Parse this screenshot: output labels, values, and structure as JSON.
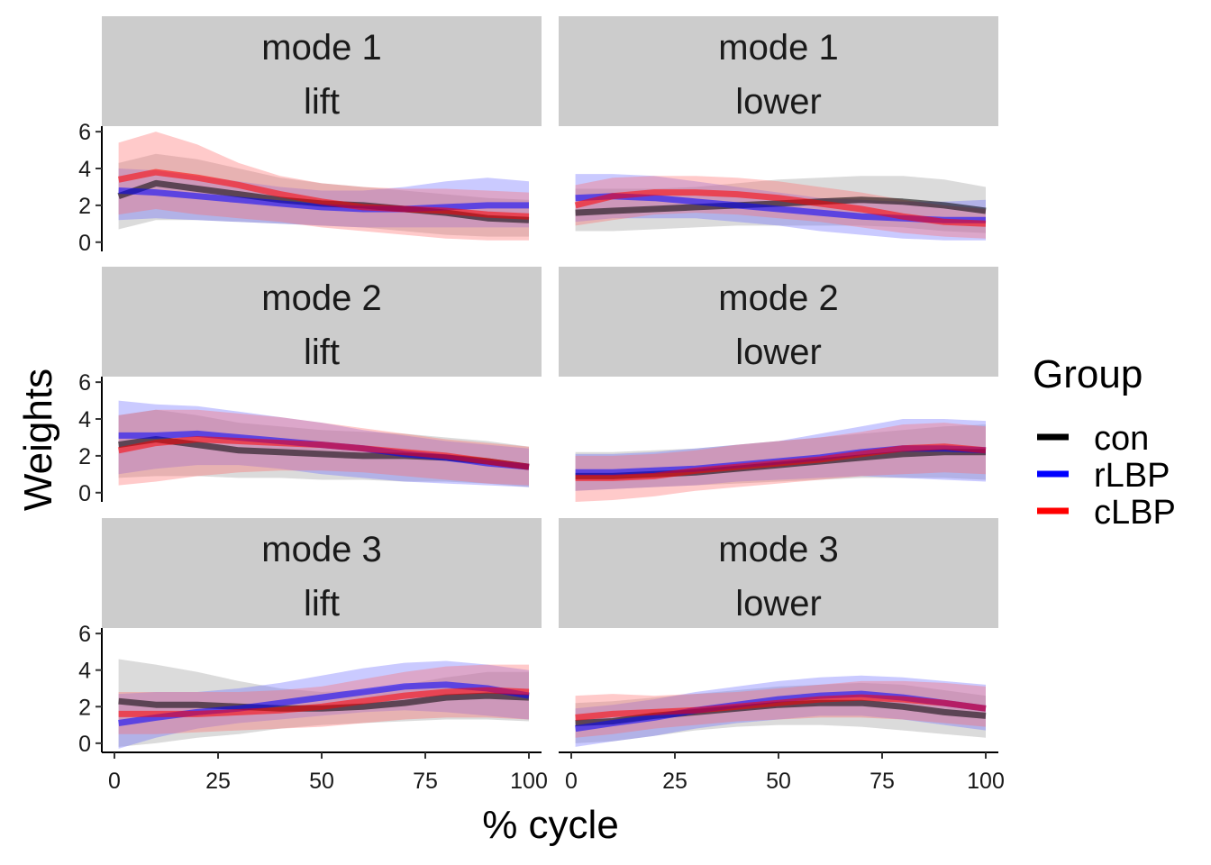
{
  "chart_data": {
    "type": "line",
    "xlabel": "% cycle",
    "ylabel": "Weights",
    "xlim": [
      0,
      100
    ],
    "ylim": [
      -0.5,
      6.3
    ],
    "x_ticks": [
      0,
      25,
      50,
      75,
      100
    ],
    "y_ticks": [
      0,
      2,
      4,
      6
    ],
    "grid": false,
    "legend": {
      "title": "Group",
      "position": "right",
      "entries": [
        {
          "name": "con",
          "color": "#000000"
        },
        {
          "name": "rLBP",
          "color": "#0000ff"
        },
        {
          "name": "cLBP",
          "color": "#ff0000"
        }
      ]
    },
    "x": [
      1,
      10,
      20,
      30,
      40,
      50,
      60,
      70,
      80,
      90,
      100
    ],
    "panels": [
      {
        "mode": "mode 1",
        "phase": "lift",
        "series": [
          {
            "name": "con",
            "values": [
              2.5,
              3.2,
              2.9,
              2.6,
              2.3,
              2.1,
              2.0,
              1.8,
              1.6,
              1.3,
              1.2
            ],
            "lower": [
              0.7,
              1.2,
              1.2,
              1.1,
              1.0,
              0.9,
              0.8,
              0.6,
              0.4,
              0.3,
              0.3
            ],
            "upper": [
              4.3,
              4.8,
              4.5,
              4.0,
              3.5,
              3.2,
              3.0,
              2.8,
              2.6,
              2.4,
              2.3
            ]
          },
          {
            "name": "rLBP",
            "values": [
              2.8,
              2.7,
              2.5,
              2.3,
              2.1,
              1.9,
              1.8,
              1.8,
              1.9,
              2.0,
              2.0
            ],
            "lower": [
              1.2,
              1.3,
              1.2,
              1.1,
              1.0,
              0.9,
              0.8,
              0.8,
              0.8,
              0.8,
              0.8
            ],
            "upper": [
              4.0,
              3.9,
              3.6,
              3.3,
              3.0,
              2.8,
              2.8,
              3.0,
              3.3,
              3.5,
              3.3
            ]
          },
          {
            "name": "cLBP",
            "values": [
              3.4,
              3.8,
              3.5,
              3.1,
              2.6,
              2.2,
              1.9,
              1.8,
              1.7,
              1.5,
              1.4
            ],
            "lower": [
              1.5,
              1.8,
              1.5,
              1.3,
              1.1,
              0.8,
              0.6,
              0.4,
              0.2,
              0.1,
              0.1
            ],
            "upper": [
              5.4,
              6.0,
              5.3,
              4.3,
              3.6,
              3.2,
              3.0,
              2.9,
              2.9,
              2.8,
              2.7
            ]
          }
        ]
      },
      {
        "mode": "mode 1",
        "phase": "lower",
        "series": [
          {
            "name": "con",
            "values": [
              1.6,
              1.7,
              1.8,
              1.9,
              2.0,
              2.1,
              2.2,
              2.3,
              2.2,
              2.0,
              1.7
            ],
            "lower": [
              0.6,
              0.6,
              0.7,
              0.8,
              0.9,
              0.9,
              0.9,
              0.9,
              0.8,
              0.6,
              0.5
            ],
            "upper": [
              2.9,
              2.9,
              2.9,
              3.0,
              3.2,
              3.4,
              3.5,
              3.6,
              3.6,
              3.4,
              3.0
            ]
          },
          {
            "name": "rLBP",
            "values": [
              2.4,
              2.5,
              2.4,
              2.2,
              2.0,
              1.8,
              1.6,
              1.4,
              1.3,
              1.2,
              1.2
            ],
            "lower": [
              1.1,
              1.3,
              1.3,
              1.3,
              1.1,
              0.9,
              0.6,
              0.4,
              0.2,
              0.1,
              0.1
            ],
            "upper": [
              3.7,
              3.7,
              3.6,
              3.3,
              3.0,
              2.7,
              2.4,
              2.3,
              2.2,
              2.2,
              2.3
            ]
          },
          {
            "name": "cLBP",
            "values": [
              2.0,
              2.5,
              2.7,
              2.7,
              2.6,
              2.4,
              2.1,
              1.8,
              1.4,
              1.1,
              1.0
            ],
            "lower": [
              0.9,
              1.2,
              1.5,
              1.6,
              1.5,
              1.3,
              1.1,
              0.8,
              0.5,
              0.3,
              0.2
            ],
            "upper": [
              3.1,
              3.5,
              3.6,
              3.6,
              3.5,
              3.3,
              3.0,
              2.7,
              2.3,
              2.0,
              1.8
            ]
          }
        ]
      },
      {
        "mode": "mode 2",
        "phase": "lift",
        "series": [
          {
            "name": "con",
            "values": [
              2.6,
              2.9,
              2.6,
              2.3,
              2.2,
              2.1,
              2.0,
              2.0,
              1.9,
              1.7,
              1.4
            ],
            "lower": [
              0.8,
              0.9,
              0.9,
              0.8,
              0.8,
              0.7,
              0.7,
              0.6,
              0.6,
              0.5,
              0.3
            ],
            "upper": [
              4.2,
              4.5,
              4.2,
              3.8,
              3.6,
              3.4,
              3.3,
              3.2,
              3.0,
              2.8,
              2.5
            ]
          },
          {
            "name": "rLBP",
            "values": [
              3.1,
              3.1,
              3.2,
              3.0,
              2.8,
              2.6,
              2.4,
              2.1,
              1.9,
              1.6,
              1.4
            ],
            "lower": [
              1.0,
              1.3,
              1.5,
              1.5,
              1.3,
              1.0,
              0.8,
              0.6,
              0.5,
              0.4,
              0.3
            ],
            "upper": [
              5.0,
              4.8,
              4.7,
              4.4,
              4.1,
              3.8,
              3.4,
              3.1,
              2.8,
              2.6,
              2.4
            ]
          },
          {
            "name": "cLBP",
            "values": [
              2.3,
              2.7,
              2.9,
              2.8,
              2.7,
              2.6,
              2.4,
              2.2,
              2.0,
              1.7,
              1.4
            ],
            "lower": [
              0.4,
              0.6,
              0.9,
              1.1,
              1.2,
              1.2,
              1.1,
              0.9,
              0.7,
              0.5,
              0.4
            ],
            "upper": [
              4.2,
              4.5,
              4.5,
              4.3,
              4.1,
              3.8,
              3.5,
              3.2,
              2.9,
              2.7,
              2.5
            ]
          }
        ]
      },
      {
        "mode": "mode 2",
        "phase": "lower",
        "series": [
          {
            "name": "con",
            "values": [
              0.9,
              0.9,
              1.0,
              1.1,
              1.3,
              1.5,
              1.7,
              1.9,
              2.1,
              2.2,
              2.2
            ],
            "lower": [
              0.1,
              0.2,
              0.3,
              0.4,
              0.5,
              0.6,
              0.7,
              0.8,
              0.8,
              0.8,
              0.7
            ],
            "upper": [
              2.2,
              2.2,
              2.3,
              2.4,
              2.6,
              2.8,
              3.0,
              3.2,
              3.4,
              3.6,
              3.7
            ]
          },
          {
            "name": "rLBP",
            "values": [
              1.1,
              1.1,
              1.2,
              1.3,
              1.5,
              1.7,
              1.9,
              2.2,
              2.4,
              2.4,
              2.3
            ],
            "lower": [
              0.1,
              0.2,
              0.3,
              0.4,
              0.6,
              0.7,
              0.8,
              0.9,
              0.8,
              0.7,
              0.6
            ],
            "upper": [
              2.1,
              2.1,
              2.2,
              2.4,
              2.6,
              2.8,
              3.2,
              3.6,
              4.0,
              4.0,
              3.9
            ]
          },
          {
            "name": "cLBP",
            "values": [
              0.8,
              0.8,
              0.9,
              1.2,
              1.4,
              1.6,
              1.8,
              2.1,
              2.4,
              2.5,
              2.3
            ],
            "lower": [
              -0.5,
              -0.4,
              -0.2,
              0.1,
              0.3,
              0.5,
              0.7,
              0.9,
              1.0,
              1.1,
              1.0
            ],
            "upper": [
              2.0,
              2.0,
              2.1,
              2.3,
              2.6,
              2.8,
              3.0,
              3.3,
              3.7,
              3.8,
              3.6
            ]
          }
        ]
      },
      {
        "mode": "mode 3",
        "phase": "lift",
        "series": [
          {
            "name": "con",
            "values": [
              2.3,
              2.1,
              2.1,
              2.0,
              1.9,
              1.9,
              2.0,
              2.2,
              2.5,
              2.6,
              2.5
            ],
            "lower": [
              -0.2,
              0.0,
              0.3,
              0.5,
              0.8,
              1.0,
              1.1,
              1.2,
              1.3,
              1.3,
              1.2
            ],
            "upper": [
              4.6,
              4.3,
              3.9,
              3.4,
              3.0,
              2.8,
              2.9,
              3.2,
              3.6,
              3.9,
              3.9
            ]
          },
          {
            "name": "rLBP",
            "values": [
              1.1,
              1.4,
              1.7,
              1.9,
              2.2,
              2.5,
              2.8,
              3.1,
              3.2,
              3.0,
              2.6
            ],
            "lower": [
              -0.3,
              0.3,
              0.8,
              1.1,
              1.3,
              1.5,
              1.7,
              1.8,
              1.7,
              1.5,
              1.3
            ],
            "upper": [
              2.7,
              2.8,
              2.8,
              3.0,
              3.3,
              3.7,
              4.1,
              4.4,
              4.5,
              4.3,
              4.0
            ]
          },
          {
            "name": "cLBP",
            "values": [
              1.6,
              1.6,
              1.6,
              1.7,
              1.8,
              2.0,
              2.3,
              2.6,
              2.8,
              2.9,
              2.8
            ],
            "lower": [
              0.5,
              0.5,
              0.6,
              0.7,
              0.8,
              0.9,
              1.1,
              1.3,
              1.4,
              1.4,
              1.3
            ],
            "upper": [
              2.8,
              2.8,
              2.8,
              2.8,
              2.9,
              3.1,
              3.5,
              3.9,
              4.2,
              4.3,
              4.3
            ]
          }
        ]
      },
      {
        "mode": "mode 3",
        "phase": "lower",
        "series": [
          {
            "name": "con",
            "values": [
              1.1,
              1.2,
              1.5,
              1.7,
              1.9,
              2.1,
              2.2,
              2.2,
              2.0,
              1.7,
              1.5
            ],
            "lower": [
              0.0,
              0.1,
              0.4,
              0.7,
              0.9,
              1.0,
              1.0,
              0.9,
              0.7,
              0.5,
              0.3
            ],
            "upper": [
              2.2,
              2.3,
              2.5,
              2.7,
              2.9,
              3.1,
              3.2,
              3.3,
              3.2,
              2.9,
              2.6
            ]
          },
          {
            "name": "rLBP",
            "values": [
              0.8,
              1.1,
              1.4,
              1.8,
              2.1,
              2.4,
              2.6,
              2.7,
              2.5,
              2.2,
              1.9
            ],
            "lower": [
              -0.2,
              0.1,
              0.4,
              0.8,
              1.1,
              1.3,
              1.5,
              1.5,
              1.3,
              1.0,
              0.7
            ],
            "upper": [
              1.9,
              2.1,
              2.4,
              2.8,
              3.1,
              3.4,
              3.6,
              3.7,
              3.6,
              3.4,
              3.2
            ]
          },
          {
            "name": "cLBP",
            "values": [
              1.4,
              1.6,
              1.7,
              1.8,
              2.0,
              2.2,
              2.4,
              2.5,
              2.4,
              2.2,
              1.9
            ],
            "lower": [
              0.3,
              0.5,
              0.8,
              1.0,
              1.2,
              1.3,
              1.4,
              1.4,
              1.3,
              1.1,
              0.9
            ],
            "upper": [
              2.6,
              2.7,
              2.6,
              2.7,
              2.8,
              3.0,
              3.2,
              3.4,
              3.4,
              3.3,
              3.1
            ]
          }
        ]
      }
    ]
  }
}
